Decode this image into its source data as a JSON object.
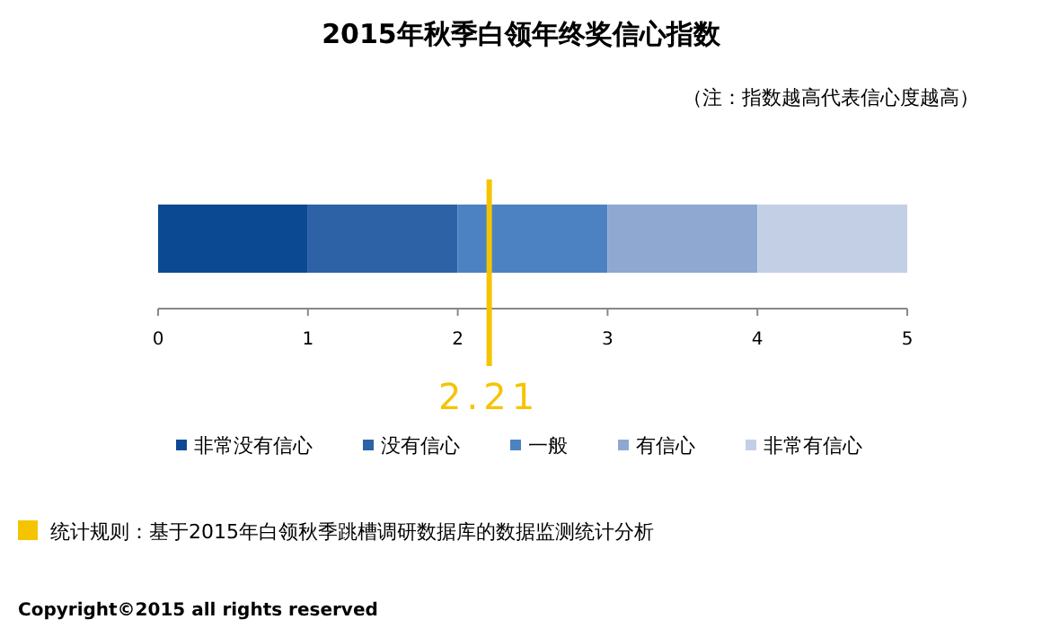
{
  "chart_data": {
    "type": "bar",
    "orientation": "horizontal",
    "stacked": true,
    "title": "2015年秋季白领年终奖信心指数",
    "categories": [
      null
    ],
    "series": [
      {
        "name": "非常没有信心",
        "color": "#0b4a93",
        "values": [
          1
        ]
      },
      {
        "name": "没有信心",
        "color": "#2e62a6",
        "values": [
          1
        ]
      },
      {
        "name": "一般",
        "color": "#4d82c2",
        "values": [
          1
        ]
      },
      {
        "name": "有信心",
        "color": "#8fa8d2",
        "values": [
          1
        ]
      },
      {
        "name": "非常有信心",
        "color": "#c3cfe5",
        "values": [
          1
        ]
      }
    ],
    "xlim": [
      0,
      5
    ],
    "xticks": [
      0,
      1,
      2,
      3,
      4,
      5
    ],
    "ref_lines": [
      {
        "axis": "x",
        "value": 2.21,
        "label": "2.21",
        "color": "#f5c400"
      }
    ],
    "legend": "bottom",
    "annotations": [
      "（注：指数越高代表信心度越高）",
      "统计规则：基于2015年白领秋季跳槽调研数据库的数据监测统计分析",
      "Copyright©2015 all rights reserved"
    ]
  }
}
